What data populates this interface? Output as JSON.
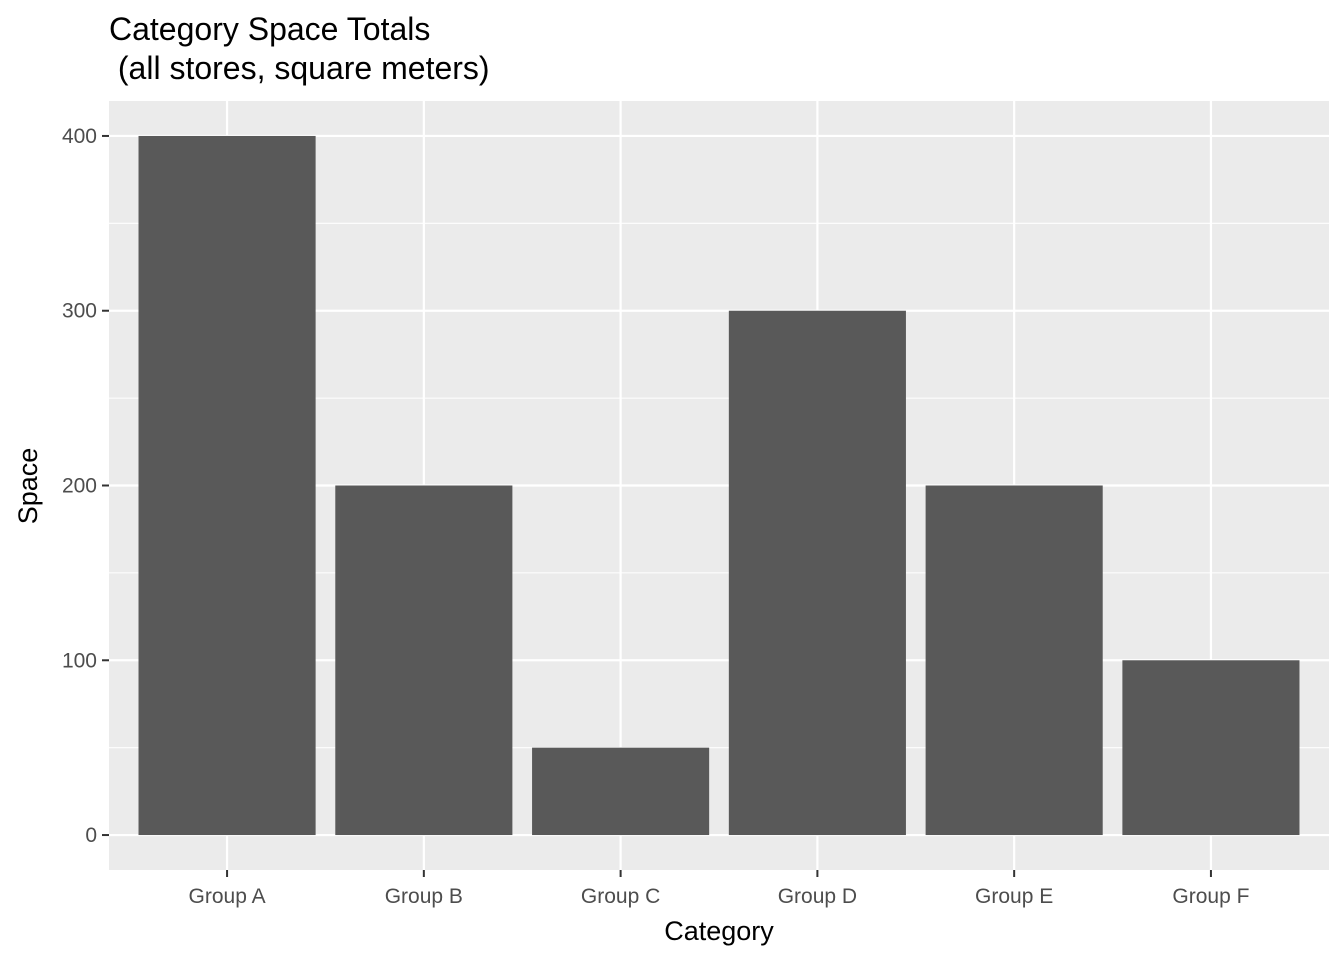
{
  "chart_data": {
    "type": "bar",
    "title_lines": [
      "Category Space Totals",
      " (all stores, square meters)"
    ],
    "xlabel": "Category",
    "ylabel": "Space",
    "categories": [
      "Group A",
      "Group B",
      "Group C",
      "Group D",
      "Group E",
      "Group F"
    ],
    "values": [
      400,
      200,
      50,
      300,
      200,
      100
    ],
    "ylim": [
      -20,
      420
    ],
    "y_ticks": [
      0,
      100,
      200,
      300,
      400
    ],
    "y_tick_labels": [
      "0",
      "100",
      "200",
      "300",
      "400"
    ],
    "y_minor_ticks": [
      50,
      150,
      250,
      350
    ],
    "grid": true,
    "legend": "none"
  },
  "colors": {
    "panel_background": "#ebebeb",
    "grid_major": "#ffffff",
    "bar_fill": "#595959",
    "tick_mark": "#333333"
  }
}
